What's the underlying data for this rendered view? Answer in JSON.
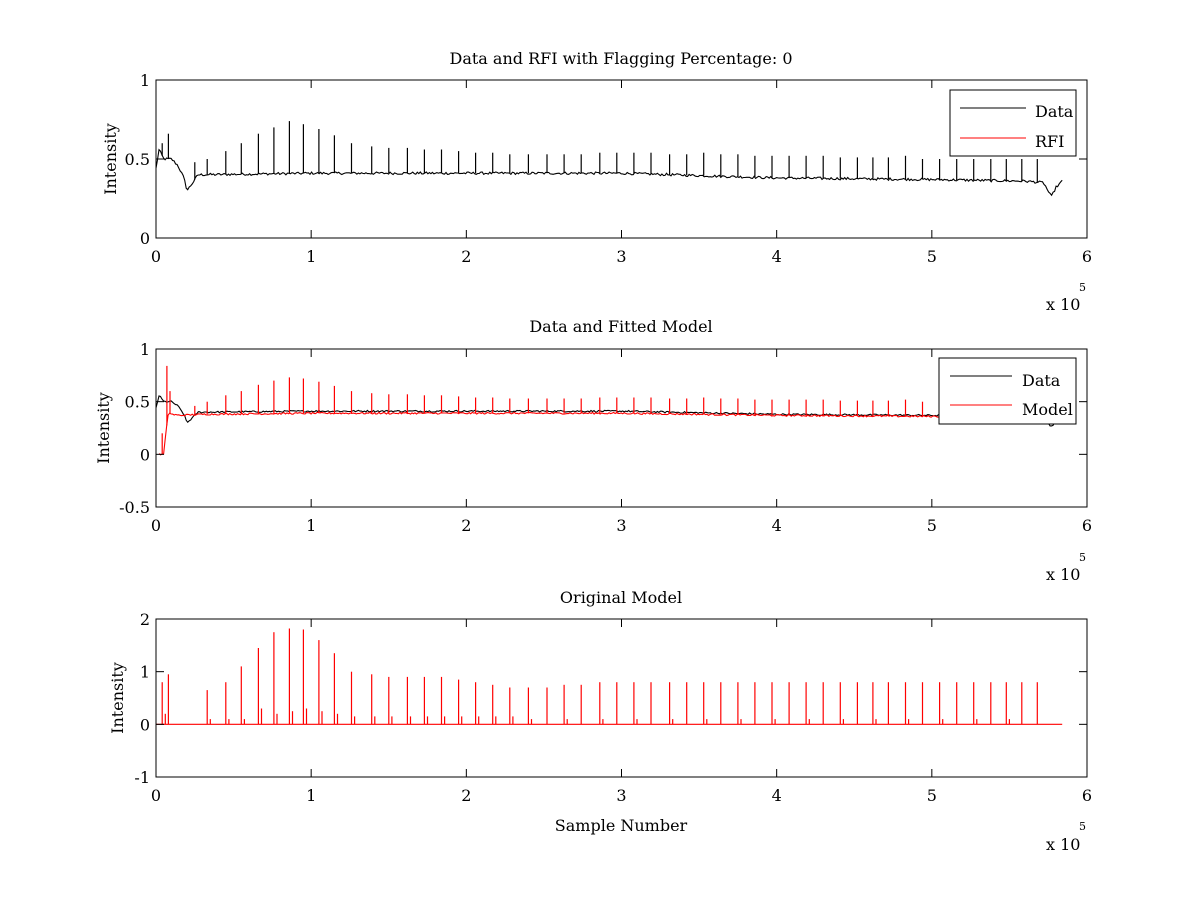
{
  "chart_data": [
    {
      "type": "line",
      "title": "Data and RFI with Flagging Percentage: 0",
      "xlabel": "",
      "ylabel": "Intensity",
      "xlim": [
        0,
        6
      ],
      "ylim": [
        0,
        1
      ],
      "xticks": [
        "0",
        "1",
        "2",
        "3",
        "4",
        "5",
        "6"
      ],
      "yticks": [
        "0",
        "0.5",
        "1"
      ],
      "x_multiplier": {
        "base": "x 10",
        "exponent": "5"
      },
      "legend": {
        "placement": "top-right",
        "entries": [
          "Data",
          "RFI"
        ]
      },
      "grid": false,
      "series": [
        {
          "name": "Data",
          "color": "#000000",
          "baseline": [
            [
              0,
              0.44
            ],
            [
              0.02,
              0.56
            ],
            [
              0.05,
              0.5
            ],
            [
              0.1,
              0.5
            ],
            [
              0.14,
              0.46
            ],
            [
              0.18,
              0.38
            ],
            [
              0.2,
              0.3
            ],
            [
              0.23,
              0.34
            ],
            [
              0.27,
              0.4
            ],
            [
              1.0,
              0.41
            ],
            [
              2.0,
              0.41
            ],
            [
              3.0,
              0.41
            ],
            [
              4.0,
              0.38
            ],
            [
              5.0,
              0.37
            ],
            [
              5.6,
              0.36
            ],
            [
              5.72,
              0.35
            ],
            [
              5.77,
              0.26
            ],
            [
              5.8,
              0.32
            ],
            [
              5.84,
              0.36
            ]
          ],
          "spikes": [
            [
              0.04,
              0.6
            ],
            [
              0.08,
              0.66
            ],
            [
              0.25,
              0.48
            ],
            [
              0.33,
              0.5
            ],
            [
              0.45,
              0.55
            ],
            [
              0.55,
              0.6
            ],
            [
              0.66,
              0.66
            ],
            [
              0.76,
              0.7
            ],
            [
              0.86,
              0.74
            ],
            [
              0.95,
              0.72
            ],
            [
              1.05,
              0.69
            ],
            [
              1.15,
              0.65
            ],
            [
              1.26,
              0.6
            ],
            [
              1.39,
              0.58
            ],
            [
              1.5,
              0.57
            ],
            [
              1.62,
              0.57
            ],
            [
              1.73,
              0.56
            ],
            [
              1.84,
              0.56
            ],
            [
              1.95,
              0.55
            ],
            [
              2.06,
              0.54
            ],
            [
              2.17,
              0.54
            ],
            [
              2.28,
              0.53
            ],
            [
              2.4,
              0.53
            ],
            [
              2.52,
              0.53
            ],
            [
              2.63,
              0.53
            ],
            [
              2.74,
              0.53
            ],
            [
              2.86,
              0.54
            ],
            [
              2.97,
              0.54
            ],
            [
              3.08,
              0.54
            ],
            [
              3.19,
              0.54
            ],
            [
              3.31,
              0.53
            ],
            [
              3.42,
              0.53
            ],
            [
              3.53,
              0.54
            ],
            [
              3.64,
              0.53
            ],
            [
              3.75,
              0.53
            ],
            [
              3.86,
              0.52
            ],
            [
              3.97,
              0.52
            ],
            [
              4.08,
              0.52
            ],
            [
              4.19,
              0.52
            ],
            [
              4.3,
              0.52
            ],
            [
              4.41,
              0.51
            ],
            [
              4.52,
              0.51
            ],
            [
              4.62,
              0.51
            ],
            [
              4.72,
              0.51
            ],
            [
              4.83,
              0.52
            ],
            [
              4.94,
              0.5
            ],
            [
              5.05,
              0.5
            ],
            [
              5.16,
              0.5
            ],
            [
              5.27,
              0.5
            ],
            [
              5.38,
              0.5
            ],
            [
              5.48,
              0.5
            ],
            [
              5.58,
              0.5
            ],
            [
              5.68,
              0.5
            ]
          ]
        },
        {
          "name": "RFI",
          "color": "#ff0000",
          "baseline": [],
          "spikes": []
        }
      ]
    },
    {
      "type": "line",
      "title": "Data and Fitted Model",
      "xlabel": "",
      "ylabel": "Intensity",
      "xlim": [
        0,
        6
      ],
      "ylim": [
        -0.5,
        1
      ],
      "xticks": [
        "0",
        "1",
        "2",
        "3",
        "4",
        "5",
        "6"
      ],
      "yticks": [
        "-0.5",
        "0",
        "0.5",
        "1"
      ],
      "x_multiplier": {
        "base": "x 10",
        "exponent": "5"
      },
      "legend": {
        "placement": "top-right",
        "entries": [
          "Data",
          "Model"
        ]
      },
      "grid": false,
      "series": [
        {
          "name": "Data",
          "color": "#000000",
          "baseline": [
            [
              0,
              0.44
            ],
            [
              0.02,
              0.56
            ],
            [
              0.05,
              0.5
            ],
            [
              0.1,
              0.5
            ],
            [
              0.14,
              0.46
            ],
            [
              0.18,
              0.38
            ],
            [
              0.2,
              0.3
            ],
            [
              0.23,
              0.34
            ],
            [
              0.27,
              0.4
            ],
            [
              1.0,
              0.41
            ],
            [
              2.0,
              0.41
            ],
            [
              3.0,
              0.41
            ],
            [
              4.0,
              0.38
            ],
            [
              5.0,
              0.37
            ],
            [
              5.6,
              0.36
            ],
            [
              5.72,
              0.35
            ],
            [
              5.77,
              0.26
            ],
            [
              5.8,
              0.32
            ],
            [
              5.84,
              0.36
            ]
          ],
          "spikes": []
        },
        {
          "name": "Model",
          "color": "#ff0000",
          "baseline": [
            [
              0.02,
              0.0
            ],
            [
              0.05,
              0.0
            ],
            [
              0.06,
              0.15
            ],
            [
              0.08,
              0.4
            ],
            [
              0.1,
              0.38
            ],
            [
              0.15,
              0.37
            ],
            [
              0.3,
              0.38
            ],
            [
              1.0,
              0.39
            ],
            [
              2.0,
              0.39
            ],
            [
              3.0,
              0.39
            ],
            [
              4.0,
              0.37
            ],
            [
              5.0,
              0.36
            ],
            [
              5.84,
              0.35
            ]
          ],
          "spikes": [
            [
              0.04,
              0.2
            ],
            [
              0.07,
              0.84
            ],
            [
              0.09,
              0.6
            ],
            [
              0.25,
              0.46
            ],
            [
              0.33,
              0.5
            ],
            [
              0.45,
              0.56
            ],
            [
              0.55,
              0.6
            ],
            [
              0.66,
              0.66
            ],
            [
              0.76,
              0.7
            ],
            [
              0.86,
              0.73
            ],
            [
              0.95,
              0.72
            ],
            [
              1.05,
              0.69
            ],
            [
              1.15,
              0.65
            ],
            [
              1.26,
              0.6
            ],
            [
              1.39,
              0.58
            ],
            [
              1.5,
              0.57
            ],
            [
              1.62,
              0.57
            ],
            [
              1.73,
              0.56
            ],
            [
              1.84,
              0.56
            ],
            [
              1.95,
              0.55
            ],
            [
              2.06,
              0.54
            ],
            [
              2.17,
              0.54
            ],
            [
              2.28,
              0.53
            ],
            [
              2.4,
              0.53
            ],
            [
              2.52,
              0.53
            ],
            [
              2.63,
              0.53
            ],
            [
              2.74,
              0.53
            ],
            [
              2.86,
              0.54
            ],
            [
              2.97,
              0.54
            ],
            [
              3.08,
              0.54
            ],
            [
              3.19,
              0.54
            ],
            [
              3.31,
              0.53
            ],
            [
              3.42,
              0.53
            ],
            [
              3.53,
              0.54
            ],
            [
              3.64,
              0.53
            ],
            [
              3.75,
              0.53
            ],
            [
              3.86,
              0.52
            ],
            [
              3.97,
              0.52
            ],
            [
              4.08,
              0.52
            ],
            [
              4.19,
              0.52
            ],
            [
              4.3,
              0.52
            ],
            [
              4.41,
              0.51
            ],
            [
              4.52,
              0.51
            ],
            [
              4.62,
              0.51
            ],
            [
              4.72,
              0.51
            ],
            [
              4.83,
              0.52
            ],
            [
              4.94,
              0.5
            ],
            [
              5.05,
              0.5
            ]
          ]
        }
      ]
    },
    {
      "type": "line",
      "title": "Original Model",
      "xlabel": "Sample Number",
      "ylabel": "Intensity",
      "xlim": [
        0,
        6
      ],
      "ylim": [
        -1,
        2
      ],
      "xticks": [
        "0",
        "1",
        "2",
        "3",
        "4",
        "5",
        "6"
      ],
      "yticks": [
        "-1",
        "0",
        "1",
        "2"
      ],
      "x_multiplier": {
        "base": "x 10",
        "exponent": "5"
      },
      "legend": null,
      "grid": false,
      "series": [
        {
          "name": "",
          "color": "#ff0000",
          "baseline": [
            [
              0.0,
              0.0
            ],
            [
              5.84,
              0.0
            ]
          ],
          "spikes": [
            [
              0.04,
              0.8
            ],
            [
              0.06,
              0.2
            ],
            [
              0.08,
              0.95
            ],
            [
              0.33,
              0.65
            ],
            [
              0.35,
              0.1
            ],
            [
              0.45,
              0.8
            ],
            [
              0.47,
              0.1
            ],
            [
              0.55,
              1.1
            ],
            [
              0.57,
              0.1
            ],
            [
              0.66,
              1.45
            ],
            [
              0.68,
              0.3
            ],
            [
              0.76,
              1.75
            ],
            [
              0.78,
              0.2
            ],
            [
              0.86,
              1.82
            ],
            [
              0.88,
              0.25
            ],
            [
              0.95,
              1.8
            ],
            [
              0.97,
              0.3
            ],
            [
              1.05,
              1.6
            ],
            [
              1.07,
              0.25
            ],
            [
              1.15,
              1.35
            ],
            [
              1.17,
              0.2
            ],
            [
              1.26,
              1.0
            ],
            [
              1.28,
              0.15
            ],
            [
              1.39,
              0.95
            ],
            [
              1.41,
              0.15
            ],
            [
              1.5,
              0.9
            ],
            [
              1.52,
              0.15
            ],
            [
              1.62,
              0.9
            ],
            [
              1.64,
              0.15
            ],
            [
              1.73,
              0.9
            ],
            [
              1.75,
              0.15
            ],
            [
              1.84,
              0.9
            ],
            [
              1.86,
              0.15
            ],
            [
              1.95,
              0.85
            ],
            [
              1.97,
              0.15
            ],
            [
              2.06,
              0.8
            ],
            [
              2.08,
              0.15
            ],
            [
              2.17,
              0.75
            ],
            [
              2.19,
              0.15
            ],
            [
              2.28,
              0.7
            ],
            [
              2.3,
              0.15
            ],
            [
              2.4,
              0.7
            ],
            [
              2.42,
              0.1
            ],
            [
              2.52,
              0.7
            ],
            [
              2.63,
              0.75
            ],
            [
              2.65,
              0.1
            ],
            [
              2.74,
              0.75
            ],
            [
              2.86,
              0.8
            ],
            [
              2.88,
              0.1
            ],
            [
              2.97,
              0.8
            ],
            [
              3.08,
              0.8
            ],
            [
              3.1,
              0.1
            ],
            [
              3.19,
              0.8
            ],
            [
              3.31,
              0.8
            ],
            [
              3.33,
              0.1
            ],
            [
              3.42,
              0.8
            ],
            [
              3.53,
              0.8
            ],
            [
              3.55,
              0.1
            ],
            [
              3.64,
              0.8
            ],
            [
              3.75,
              0.8
            ],
            [
              3.77,
              0.1
            ],
            [
              3.86,
              0.8
            ],
            [
              3.97,
              0.8
            ],
            [
              3.99,
              0.1
            ],
            [
              4.08,
              0.8
            ],
            [
              4.19,
              0.8
            ],
            [
              4.21,
              0.1
            ],
            [
              4.3,
              0.8
            ],
            [
              4.41,
              0.8
            ],
            [
              4.43,
              0.1
            ],
            [
              4.52,
              0.8
            ],
            [
              4.62,
              0.8
            ],
            [
              4.64,
              0.1
            ],
            [
              4.72,
              0.8
            ],
            [
              4.83,
              0.8
            ],
            [
              4.85,
              0.1
            ],
            [
              4.94,
              0.8
            ],
            [
              5.05,
              0.8
            ],
            [
              5.07,
              0.1
            ],
            [
              5.16,
              0.8
            ],
            [
              5.27,
              0.8
            ],
            [
              5.29,
              0.1
            ],
            [
              5.38,
              0.8
            ],
            [
              5.48,
              0.8
            ],
            [
              5.5,
              0.1
            ],
            [
              5.58,
              0.8
            ],
            [
              5.68,
              0.8
            ]
          ]
        }
      ]
    }
  ]
}
